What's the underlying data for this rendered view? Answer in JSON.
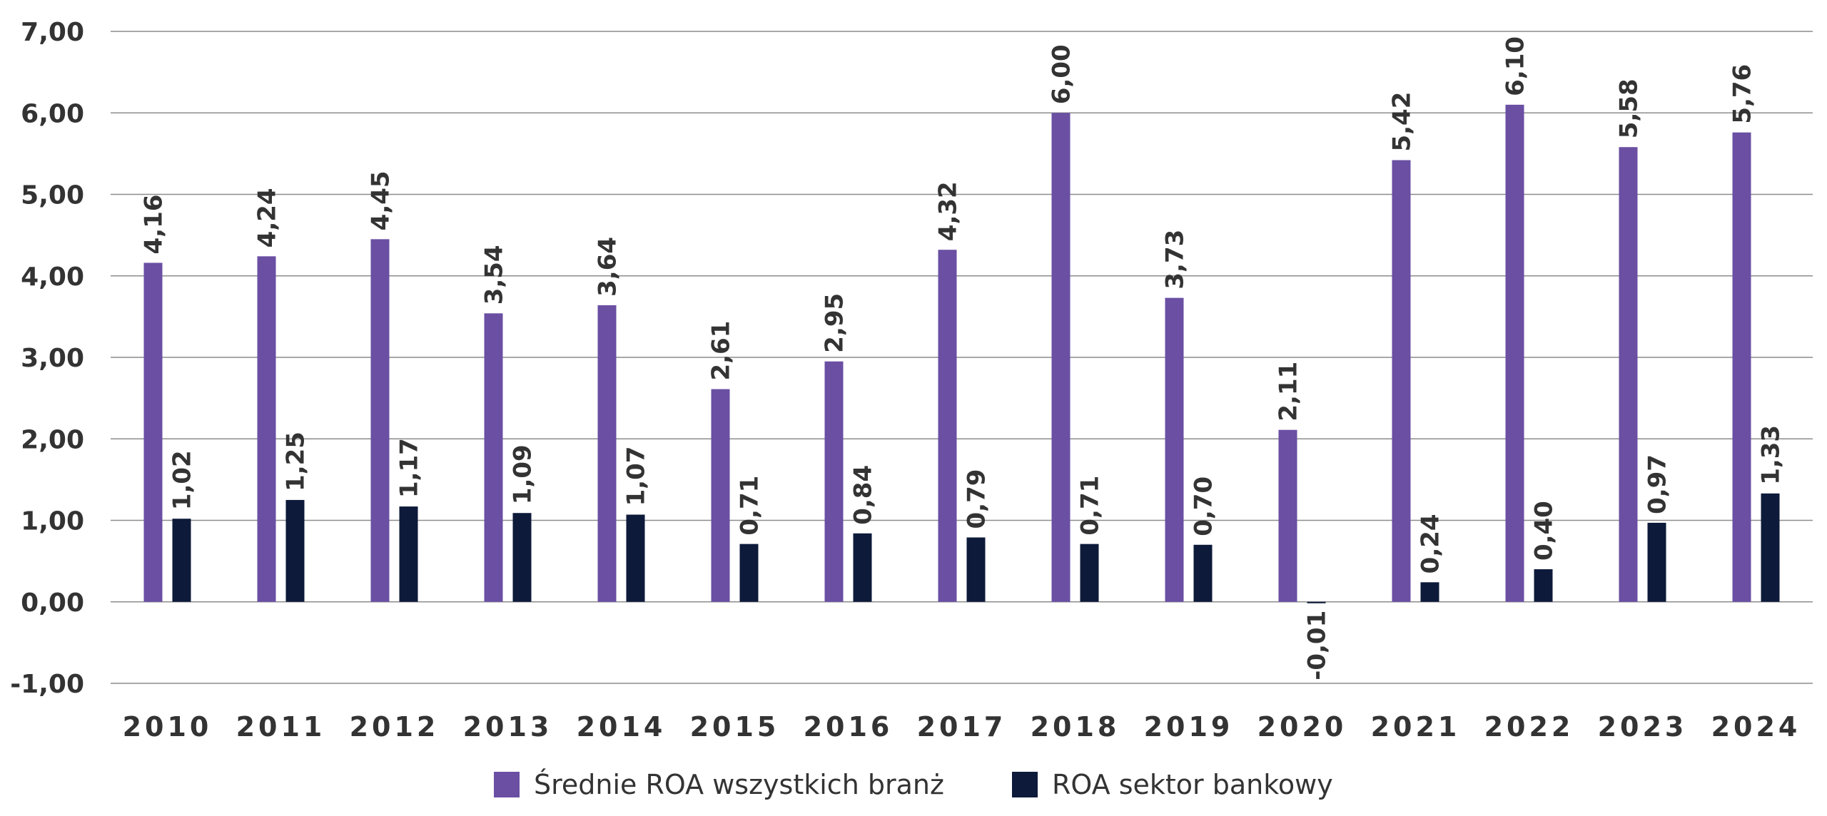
{
  "chart_data": {
    "type": "bar",
    "title": "",
    "xlabel": "",
    "ylabel": "",
    "categories": [
      "2010",
      "2011",
      "2012",
      "2013",
      "2014",
      "2015",
      "2016",
      "2017",
      "2018",
      "2019",
      "2020",
      "2021",
      "2022",
      "2023",
      "2024"
    ],
    "series": [
      {
        "name": "Średnie ROA wszystkich branż",
        "color": "#6a4fa3",
        "values": [
          4.16,
          4.24,
          4.45,
          3.54,
          3.64,
          2.61,
          2.95,
          4.32,
          6.0,
          3.73,
          2.11,
          5.42,
          6.1,
          5.58,
          5.76
        ],
        "labels": [
          "4,16",
          "4,24",
          "4,45",
          "3,54",
          "3,64",
          "2,61",
          "2,95",
          "4,32",
          "6,00",
          "3,73",
          "2,11",
          "5,42",
          "6,10",
          "5,58",
          "5,76"
        ]
      },
      {
        "name": "ROA sektor bankowy",
        "color": "#0d1a3a",
        "values": [
          1.02,
          1.25,
          1.17,
          1.09,
          1.07,
          0.71,
          0.84,
          0.79,
          0.71,
          0.7,
          -0.01,
          0.24,
          0.4,
          0.97,
          1.33
        ],
        "labels": [
          "1,02",
          "1,25",
          "1,17",
          "1,09",
          "1,07",
          "0,71",
          "0,84",
          "0,79",
          "0,71",
          "0,70",
          "-0,01",
          "0,24",
          "0,40",
          "0,97",
          "1,33"
        ]
      }
    ],
    "ylim": [
      -1,
      7
    ],
    "yticks": [
      -1,
      0,
      1,
      2,
      3,
      4,
      5,
      6,
      7
    ],
    "ytick_labels": [
      "-1,00",
      "0,00",
      "1,00",
      "2,00",
      "3,00",
      "4,00",
      "5,00",
      "6,00",
      "7,00"
    ],
    "grid": true,
    "legend_position": "bottom-center"
  }
}
